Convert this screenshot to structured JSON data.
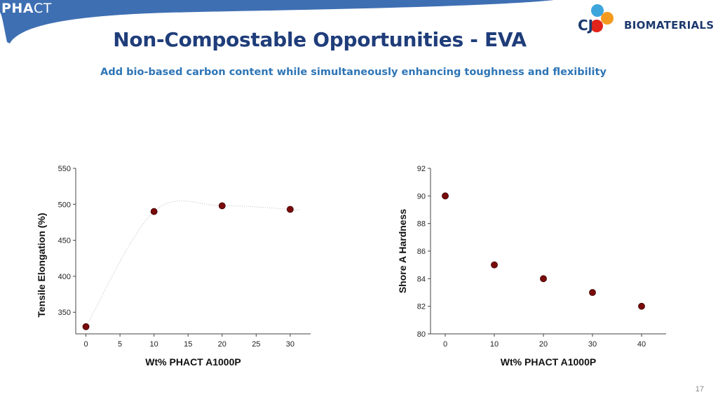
{
  "header": {
    "brand": {
      "bold": "PHA",
      "light": "CT"
    },
    "title": "Non-Compostable Opportunities - EVA",
    "subtitle": "Add bio-based carbon content while simultaneously enhancing toughness and flexibility",
    "logo": {
      "cj": "CJ",
      "name": "BIOMATERIALS"
    }
  },
  "colors": {
    "banner": "#3f6fb3",
    "title": "#1f3d7a",
    "subtitle": "#2e75b6",
    "marker": "#7a0b0b",
    "logo_blue": "#3da5dc",
    "logo_orange": "#f39a1e",
    "logo_red": "#e2231a"
  },
  "chart_data": [
    {
      "type": "scatter",
      "title": "",
      "xlabel": "Wt% PHACT A1000P",
      "ylabel": "Tensile Elongation (%)",
      "x_ticks": [
        "0",
        "5",
        "10",
        "15",
        "20",
        "25",
        "30"
      ],
      "y_ticks": [
        "350",
        "400",
        "450",
        "500",
        "550"
      ],
      "xlim": [
        -1.5,
        33
      ],
      "ylim": [
        320,
        550
      ],
      "grid": false,
      "trendline": "dotted smooth curve",
      "series": [
        {
          "x": [
            0,
            10,
            20,
            30
          ],
          "y": [
            330,
            490,
            498,
            493
          ]
        }
      ]
    },
    {
      "type": "scatter",
      "title": "",
      "xlabel": "Wt% PHACT A1000P",
      "ylabel": "Shore A Hardness",
      "x_ticks": [
        "0",
        "10",
        "20",
        "30",
        "40"
      ],
      "y_ticks": [
        "80",
        "82",
        "84",
        "86",
        "88",
        "90",
        "92"
      ],
      "xlim": [
        -3,
        45
      ],
      "ylim": [
        80,
        92
      ],
      "grid": false,
      "series": [
        {
          "x": [
            0,
            10,
            20,
            30,
            40
          ],
          "y": [
            90,
            85,
            84,
            83,
            82
          ]
        }
      ]
    }
  ],
  "footer": {
    "page": "17"
  }
}
